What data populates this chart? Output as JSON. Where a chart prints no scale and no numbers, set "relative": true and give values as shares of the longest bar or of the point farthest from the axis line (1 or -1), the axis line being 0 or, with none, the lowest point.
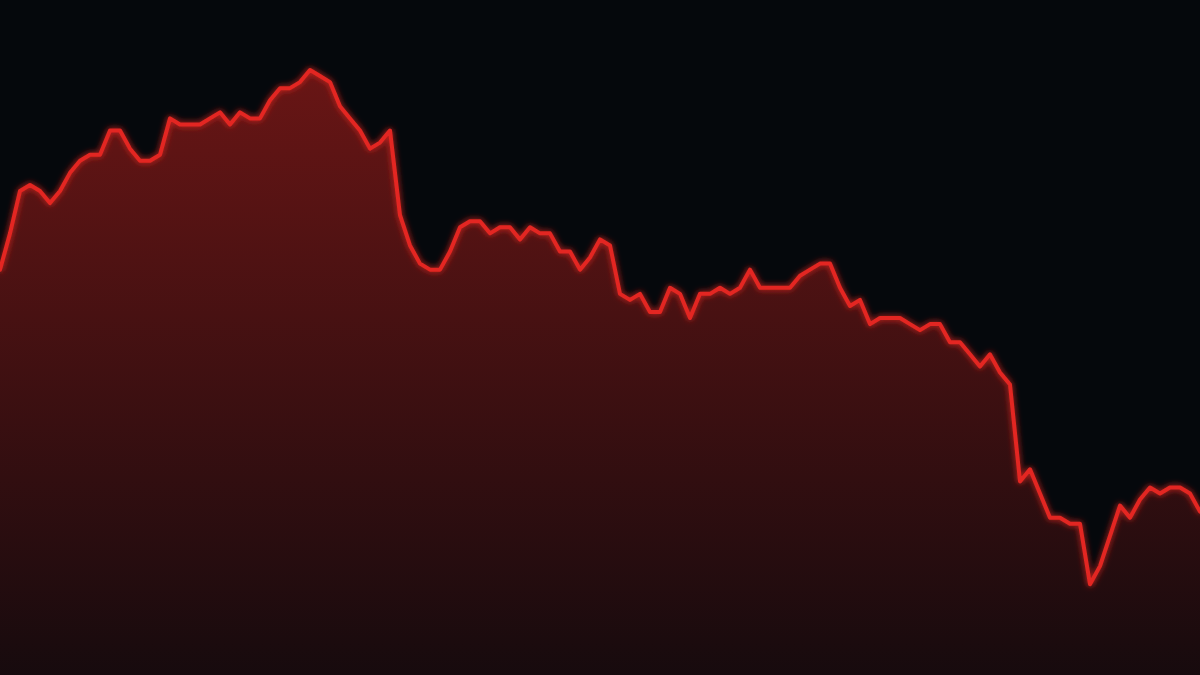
{
  "chart_data": {
    "type": "area",
    "relative": true,
    "tick_labels": false,
    "color": "#e32620",
    "categories": [
      null,
      null,
      null,
      null,
      null,
      null,
      null,
      null,
      null,
      null,
      null,
      null,
      null,
      null,
      null,
      null,
      null,
      null,
      null,
      null,
      null,
      null,
      null,
      null,
      null,
      null,
      null,
      null,
      null,
      null,
      null,
      null,
      null,
      null,
      null,
      null,
      null,
      null,
      null,
      null,
      null,
      null,
      null,
      null,
      null,
      null,
      null,
      null,
      null,
      null,
      null,
      null,
      null,
      null,
      null,
      null,
      null,
      null,
      null,
      null,
      null,
      null,
      null,
      null,
      null,
      null,
      null,
      null,
      null,
      null,
      null,
      null,
      null,
      null,
      null,
      null,
      null,
      null,
      null,
      null,
      null,
      null,
      null,
      null,
      null,
      null,
      null,
      null,
      null,
      null,
      null,
      null,
      null,
      null,
      null,
      null,
      null,
      null,
      null,
      null,
      null,
      null,
      null,
      null,
      null,
      null,
      null,
      null,
      null,
      null,
      null,
      null,
      null,
      null,
      null,
      null,
      null,
      null,
      null,
      null,
      null
    ],
    "values": [
      0.67,
      0.73,
      0.8,
      0.81,
      0.8,
      0.78,
      0.8,
      0.83,
      0.85,
      0.86,
      0.86,
      0.9,
      0.9,
      0.87,
      0.85,
      0.85,
      0.86,
      0.92,
      0.91,
      0.91,
      0.91,
      0.92,
      0.93,
      0.91,
      0.93,
      0.92,
      0.92,
      0.95,
      0.97,
      0.97,
      0.98,
      1.0,
      0.99,
      0.98,
      0.94,
      0.92,
      0.9,
      0.87,
      0.88,
      0.9,
      0.76,
      0.71,
      0.68,
      0.67,
      0.67,
      0.7,
      0.74,
      0.75,
      0.75,
      0.73,
      0.74,
      0.74,
      0.72,
      0.74,
      0.73,
      0.73,
      0.7,
      0.7,
      0.67,
      0.69,
      0.72,
      0.71,
      0.63,
      0.62,
      0.63,
      0.6,
      0.6,
      0.64,
      0.63,
      0.59,
      0.63,
      0.63,
      0.64,
      0.63,
      0.64,
      0.67,
      0.64,
      0.64,
      0.64,
      0.64,
      0.66,
      0.67,
      0.68,
      0.68,
      0.64,
      0.61,
      0.62,
      0.58,
      0.59,
      0.59,
      0.59,
      0.58,
      0.57,
      0.58,
      0.58,
      0.55,
      0.55,
      0.53,
      0.51,
      0.53,
      0.5,
      0.48,
      0.32,
      0.34,
      0.3,
      0.26,
      0.26,
      0.25,
      0.25,
      0.15,
      0.18,
      0.23,
      0.28,
      0.26,
      0.29,
      0.31,
      0.3,
      0.31,
      0.31,
      0.3,
      0.27
    ]
  }
}
